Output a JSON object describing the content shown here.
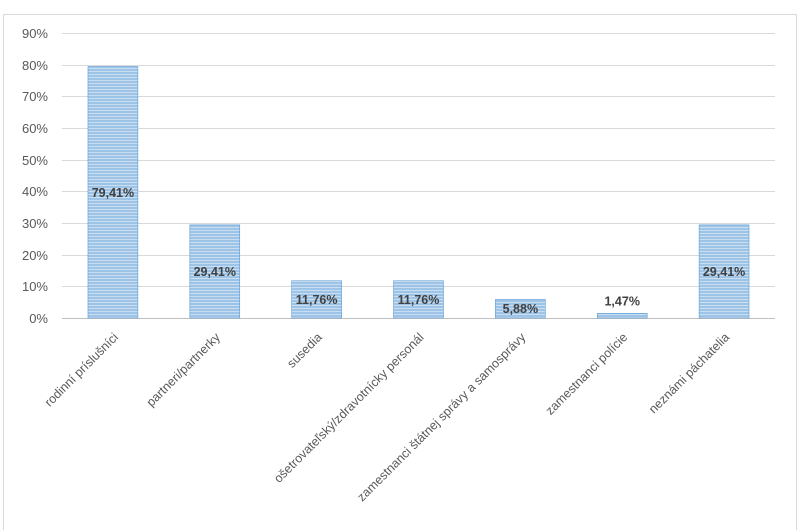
{
  "chart_data": {
    "type": "bar",
    "title": "",
    "xlabel": "",
    "ylabel": "",
    "categories": [
      "rodinní príslušníci",
      "partneri/partnerky",
      "susedia",
      "ošetrovateľský/zdravotnícky personál",
      "zamestnanci štátnej správy a samosprávy",
      "zamestnanci polície",
      "neznámi páchatelia"
    ],
    "values": [
      79.41,
      29.41,
      11.76,
      11.76,
      5.88,
      1.47,
      29.41
    ],
    "data_labels": [
      "79,41%",
      "29,41%",
      "11,76%",
      "11,76%",
      "5,88%",
      "1,47%",
      "29,41%"
    ],
    "ylim": [
      0,
      90
    ],
    "yticks": [
      0,
      10,
      20,
      30,
      40,
      50,
      60,
      70,
      80,
      90
    ],
    "ytick_labels": [
      "0%",
      "10%",
      "20%",
      "30%",
      "40%",
      "50%",
      "60%",
      "70%",
      "80%",
      "90%"
    ],
    "grid": true,
    "legend": "none",
    "colors": {
      "bar": "#9dc3e6",
      "bar_stripe": "#ffffff",
      "bar_edge": "#5b9bd5",
      "grid": "#d9d9d9",
      "axis": "#bfbfbf"
    }
  }
}
